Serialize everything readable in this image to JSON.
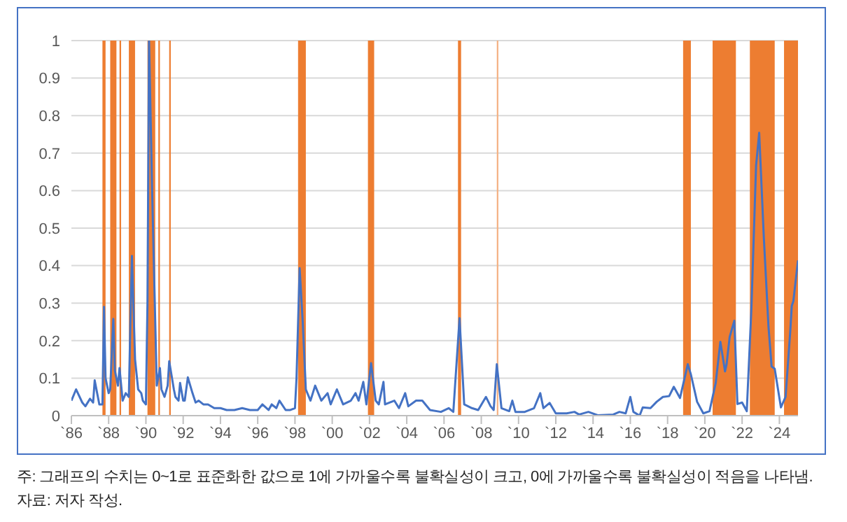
{
  "chart_data": {
    "type": "line",
    "x": [
      "1986-01",
      "1986-04",
      "1986-08",
      "1986-10",
      "1987-01",
      "1987-03",
      "1987-04",
      "1987-07",
      "1987-09",
      "1987-10",
      "1987-11",
      "1988-01",
      "1988-02",
      "1988-04",
      "1988-05",
      "1988-07",
      "1988-08",
      "1988-10",
      "1988-12",
      "1989-02",
      "1989-03",
      "1989-04",
      "1989-06",
      "1989-08",
      "1989-10",
      "1989-11",
      "1990-01",
      "1990-02",
      "1990-03",
      "1990-05",
      "1990-07",
      "1990-08",
      "1990-10",
      "1990-11",
      "1991-01",
      "1991-03",
      "1991-04",
      "1991-07",
      "1991-08",
      "1991-10",
      "1991-11",
      "1992-01",
      "1992-02",
      "1992-04",
      "1992-07",
      "1992-09",
      "1992-11",
      "1993-02",
      "1993-05",
      "1993-09",
      "1994-01",
      "1994-05",
      "1994-10",
      "1995-03",
      "1995-08",
      "1996-01",
      "1996-04",
      "1996-08",
      "1996-10",
      "1997-01",
      "1997-03",
      "1997-07",
      "1997-10",
      "1998-01",
      "1998-02",
      "1998-04",
      "1998-06",
      "1998-08",
      "1998-11",
      "1999-02",
      "1999-06",
      "1999-10",
      "1999-12",
      "2000-04",
      "2000-08",
      "2001-01",
      "2001-04",
      "2001-06",
      "2001-09",
      "2001-11",
      "2002-02",
      "2002-05",
      "2002-07",
      "2002-10",
      "2002-11",
      "2003-05",
      "2003-08",
      "2003-12",
      "2004-02",
      "2004-07",
      "2004-11",
      "2005-04",
      "2005-11",
      "2006-04",
      "2006-07",
      "2006-11",
      "2007-02",
      "2007-07",
      "2007-11",
      "2008-04",
      "2008-07",
      "2008-09",
      "2008-11",
      "2009-02",
      "2009-07",
      "2009-09",
      "2009-11",
      "2010-05",
      "2010-11",
      "2011-03",
      "2011-05",
      "2011-09",
      "2012-01",
      "2012-08",
      "2013-01",
      "2013-04",
      "2013-10",
      "2014-04",
      "2015-02",
      "2015-06",
      "2015-10",
      "2016-01",
      "2016-03",
      "2016-07",
      "2016-09",
      "2017-02",
      "2017-06",
      "2017-10",
      "2018-02",
      "2018-05",
      "2018-09",
      "2019-02",
      "2019-04",
      "2019-08",
      "2019-12",
      "2020-04",
      "2020-08",
      "2020-11",
      "2021-02",
      "2021-03",
      "2021-05",
      "2021-08",
      "2021-10",
      "2022-01",
      "2022-04",
      "2022-07",
      "2022-10",
      "2022-12",
      "2023-03",
      "2023-06",
      "2023-08",
      "2023-10",
      "2024-02",
      "2024-05",
      "2024-08",
      "2024-09",
      "2024-10",
      "2025-01"
    ],
    "series": [
      {
        "color": "#4472c4",
        "values": [
          0.04,
          0.07,
          0.035,
          0.025,
          0.045,
          0.035,
          0.094,
          0.03,
          0.03,
          0.29,
          0.1,
          0.06,
          0.07,
          0.258,
          0.12,
          0.08,
          0.127,
          0.04,
          0.06,
          0.05,
          0.25,
          0.426,
          0.15,
          0.07,
          0.06,
          0.04,
          0.03,
          0.3,
          1.0,
          0.6,
          0.25,
          0.08,
          0.127,
          0.07,
          0.05,
          0.08,
          0.145,
          0.07,
          0.05,
          0.04,
          0.087,
          0.04,
          0.04,
          0.102,
          0.06,
          0.035,
          0.04,
          0.03,
          0.03,
          0.02,
          0.02,
          0.015,
          0.015,
          0.02,
          0.015,
          0.015,
          0.03,
          0.015,
          0.03,
          0.02,
          0.04,
          0.015,
          0.015,
          0.02,
          0.1,
          0.393,
          0.25,
          0.07,
          0.04,
          0.08,
          0.04,
          0.06,
          0.03,
          0.07,
          0.03,
          0.04,
          0.06,
          0.04,
          0.09,
          0.03,
          0.14,
          0.04,
          0.03,
          0.09,
          0.03,
          0.04,
          0.02,
          0.06,
          0.025,
          0.04,
          0.04,
          0.015,
          0.01,
          0.02,
          0.01,
          0.26,
          0.03,
          0.02,
          0.015,
          0.05,
          0.025,
          0.015,
          0.137,
          0.02,
          0.012,
          0.04,
          0.01,
          0.01,
          0.02,
          0.06,
          0.02,
          0.034,
          0.006,
          0.006,
          0.01,
          0.003,
          0.01,
          0.001,
          0.003,
          0.01,
          0.006,
          0.05,
          0.01,
          0.0,
          0.022,
          0.02,
          0.037,
          0.05,
          0.052,
          0.077,
          0.047,
          0.137,
          0.11,
          0.037,
          0.006,
          0.012,
          0.087,
          0.197,
          0.118,
          0.137,
          0.21,
          0.253,
          0.031,
          0.035,
          0.012,
          0.287,
          0.667,
          0.754,
          0.474,
          0.237,
          0.131,
          0.125,
          0.022,
          0.05,
          0.224,
          0.293,
          0.305,
          0.414
        ]
      }
    ],
    "xlim": [
      "1986",
      "2025"
    ],
    "xticks": [
      {
        "value": "1986",
        "label": "`86"
      },
      {
        "value": "1988",
        "label": "`88"
      },
      {
        "value": "1990",
        "label": "`90"
      },
      {
        "value": "1992",
        "label": "`92"
      },
      {
        "value": "1994",
        "label": "`94"
      },
      {
        "value": "1996",
        "label": "`96"
      },
      {
        "value": "1998",
        "label": "`98"
      },
      {
        "value": "2000",
        "label": "`00"
      },
      {
        "value": "2002",
        "label": "`02"
      },
      {
        "value": "2004",
        "label": "`04"
      },
      {
        "value": "2006",
        "label": "`06"
      },
      {
        "value": "2008",
        "label": "`08"
      },
      {
        "value": "2010",
        "label": "`10"
      },
      {
        "value": "2012",
        "label": "`12"
      },
      {
        "value": "2014",
        "label": "`14"
      },
      {
        "value": "2016",
        "label": "`16"
      },
      {
        "value": "2018",
        "label": "`18"
      },
      {
        "value": "2020",
        "label": "`20"
      },
      {
        "value": "2022",
        "label": "`22"
      },
      {
        "value": "2024",
        "label": "`24"
      }
    ],
    "ylim": [
      0,
      1
    ],
    "yticks": [
      0,
      0.1,
      0.2,
      0.3,
      0.4,
      0.5,
      0.6,
      0.7,
      0.8,
      0.9,
      1
    ],
    "grid": "y",
    "bands": [
      {
        "axis": "x",
        "from": "1987-09",
        "to": "1987-11",
        "color": "#ed7d31"
      },
      {
        "axis": "x",
        "from": "1988-02",
        "to": "1988-06",
        "color": "#ed7d31"
      },
      {
        "axis": "x",
        "from": "1988-08",
        "to": "1988-09",
        "color": "#ed7d31"
      },
      {
        "axis": "x",
        "from": "1989-02",
        "to": "1989-06",
        "color": "#ed7d31"
      },
      {
        "axis": "x",
        "from": "1990-02",
        "to": "1990-07",
        "color": "#ed7d31"
      },
      {
        "axis": "x",
        "from": "1990-09",
        "to": "1990-10",
        "color": "#ed7d31"
      },
      {
        "axis": "x",
        "from": "1991-04",
        "to": "1991-05",
        "color": "#ed7d31"
      },
      {
        "axis": "x",
        "from": "1998-03",
        "to": "1998-08",
        "color": "#ed7d31"
      },
      {
        "axis": "x",
        "from": "2001-12",
        "to": "2002-04",
        "color": "#ed7d31"
      },
      {
        "axis": "x",
        "from": "2006-10",
        "to": "2006-12",
        "color": "#ed7d31"
      },
      {
        "axis": "x",
        "from": "2008-11",
        "to": "2008-12",
        "color": "#f4b183"
      },
      {
        "axis": "x",
        "from": "2018-11",
        "to": "2019-04",
        "color": "#ed7d31"
      },
      {
        "axis": "x",
        "from": "2020-06",
        "to": "2021-09",
        "color": "#ed7d31"
      },
      {
        "axis": "x",
        "from": "2022-06",
        "to": "2023-10",
        "color": "#ed7d31"
      },
      {
        "axis": "x",
        "from": "2024-04",
        "to": "2025-01",
        "color": "#ed7d31"
      }
    ],
    "annotations": [
      "주: 그래프의 수치는 0~1로 표준화한 값으로 1에 가까울수록 불확실성이 크고, 0에 가까울수록 불확실성이 적음을 나타냄.",
      "자료: 저자 작성."
    ]
  }
}
